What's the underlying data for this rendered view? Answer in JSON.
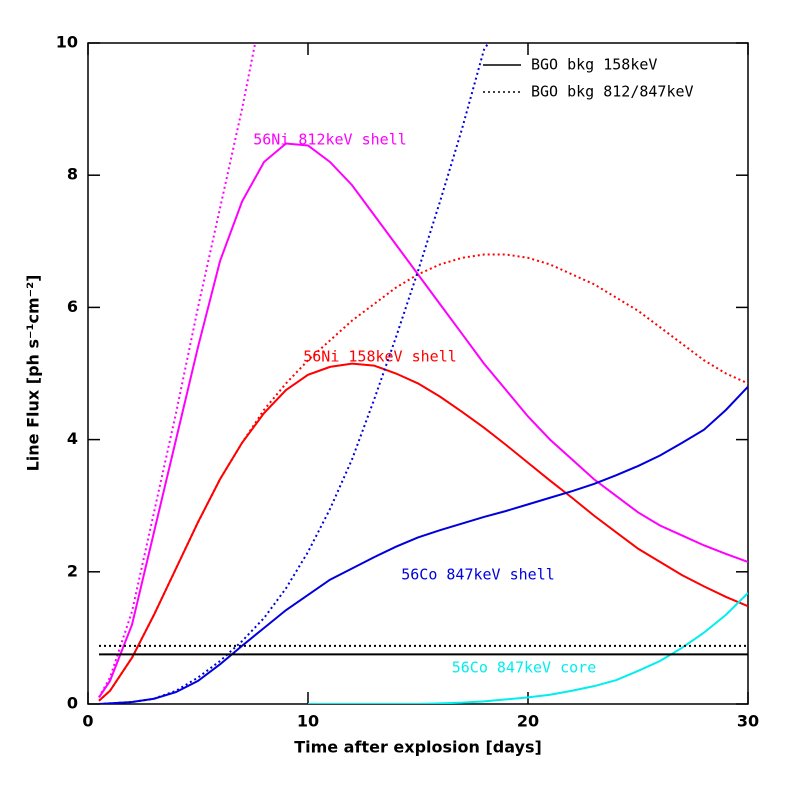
{
  "chart_data": {
    "type": "line",
    "xlabel": "Time after explosion [days]",
    "ylabel": "Line Flux [ph s⁻¹cm⁻²]",
    "xlim": [
      0,
      30
    ],
    "xticks": [
      0,
      10,
      20,
      30
    ],
    "ylim": [
      0,
      10
    ],
    "yticks": [
      0,
      2,
      4,
      6,
      8,
      10
    ],
    "legend": "upper right",
    "series": [
      {
        "label": "56Ni 812keV shell",
        "color": "#ff00ff",
        "style": "solid",
        "x": [
          0.5,
          1,
          2,
          3,
          4,
          5,
          6,
          7,
          8,
          9,
          10,
          11,
          12,
          13,
          14,
          15,
          16,
          17,
          18,
          19,
          20,
          21,
          22,
          23,
          24,
          25,
          26,
          27,
          28,
          29,
          30
        ],
        "values": [
          0.1,
          0.35,
          1.2,
          2.6,
          4.0,
          5.4,
          6.7,
          7.6,
          8.2,
          8.48,
          8.45,
          8.2,
          7.85,
          7.4,
          6.95,
          6.5,
          6.05,
          5.6,
          5.15,
          4.75,
          4.35,
          4.0,
          3.7,
          3.4,
          3.15,
          2.9,
          2.7,
          2.55,
          2.4,
          2.27,
          2.15
        ]
      },
      {
        "color": "#ff00ff",
        "style": "dotted",
        "x": [
          0.5,
          1,
          2,
          3,
          4,
          5,
          6,
          7,
          7.6
        ],
        "values": [
          0.1,
          0.4,
          1.4,
          2.9,
          4.4,
          6.0,
          7.5,
          9.0,
          10
        ]
      },
      {
        "label": "56Ni 158keV shell",
        "color": "#ff0000",
        "style": "solid",
        "x": [
          0.5,
          1,
          2,
          3,
          4,
          5,
          6,
          7,
          8,
          9,
          10,
          11,
          12,
          13,
          14,
          15,
          16,
          17,
          18,
          19,
          20,
          21,
          22,
          23,
          24,
          25,
          26,
          27,
          28,
          29,
          30
        ],
        "values": [
          0.05,
          0.2,
          0.7,
          1.35,
          2.05,
          2.75,
          3.4,
          3.95,
          4.4,
          4.75,
          4.98,
          5.1,
          5.15,
          5.12,
          5.0,
          4.85,
          4.65,
          4.42,
          4.18,
          3.92,
          3.65,
          3.38,
          3.12,
          2.85,
          2.6,
          2.35,
          2.15,
          1.95,
          1.78,
          1.62,
          1.48
        ]
      },
      {
        "color": "#ff0000",
        "style": "dotted",
        "x": [
          0.5,
          1,
          2,
          3,
          4,
          5,
          6,
          7,
          8,
          9,
          10,
          11,
          12,
          13,
          14,
          15,
          16,
          17,
          18,
          19,
          20,
          21,
          22,
          23,
          24,
          25,
          26,
          27,
          28,
          29,
          30
        ],
        "values": [
          0.05,
          0.2,
          0.7,
          1.35,
          2.05,
          2.75,
          3.4,
          3.95,
          4.45,
          4.85,
          5.2,
          5.5,
          5.8,
          6.05,
          6.3,
          6.5,
          6.65,
          6.75,
          6.8,
          6.8,
          6.75,
          6.65,
          6.5,
          6.35,
          6.15,
          5.95,
          5.7,
          5.45,
          5.2,
          5.0,
          4.85
        ]
      },
      {
        "label": "56Co 847keV shell",
        "color": "#0000dd",
        "style": "solid",
        "x": [
          0.5,
          1,
          2,
          3,
          4,
          5,
          6,
          7,
          8,
          9,
          10,
          11,
          12,
          13,
          14,
          15,
          16,
          17,
          18,
          19,
          20,
          21,
          22,
          23,
          24,
          25,
          26,
          27,
          28,
          29,
          30
        ],
        "values": [
          0,
          0.01,
          0.03,
          0.08,
          0.18,
          0.35,
          0.6,
          0.88,
          1.15,
          1.42,
          1.65,
          1.88,
          2.05,
          2.22,
          2.38,
          2.52,
          2.63,
          2.73,
          2.83,
          2.92,
          3.02,
          3.12,
          3.22,
          3.33,
          3.46,
          3.6,
          3.76,
          3.95,
          4.15,
          4.45,
          4.8
        ]
      },
      {
        "color": "#0000dd",
        "style": "dotted",
        "x": [
          0.5,
          1,
          2,
          3,
          4,
          5,
          6,
          7,
          8,
          9,
          10,
          11,
          12,
          13,
          14,
          15,
          16,
          17,
          18,
          18.2
        ],
        "values": [
          0,
          0.01,
          0.03,
          0.08,
          0.2,
          0.4,
          0.65,
          0.95,
          1.3,
          1.75,
          2.3,
          2.95,
          3.7,
          4.6,
          5.55,
          6.55,
          7.6,
          8.7,
          9.9,
          10
        ]
      },
      {
        "label": "56Co 847keV core",
        "color": "#00eeee",
        "style": "solid",
        "x": [
          10,
          15,
          16,
          17,
          18,
          19,
          20,
          21,
          22,
          23,
          24,
          25,
          26,
          27,
          28,
          29,
          30
        ],
        "values": [
          0,
          0,
          0.01,
          0.02,
          0.04,
          0.07,
          0.1,
          0.14,
          0.2,
          0.27,
          0.36,
          0.5,
          0.65,
          0.85,
          1.08,
          1.35,
          1.68
        ]
      },
      {
        "name": "BGO bkg 158keV",
        "color": "#000000",
        "style": "solid",
        "x": [
          0.5,
          30
        ],
        "values": [
          0.75,
          0.75
        ]
      },
      {
        "name": "BGO bkg 812/847keV",
        "color": "#000000",
        "style": "dotted",
        "x": [
          0.5,
          30
        ],
        "values": [
          0.88,
          0.88
        ]
      }
    ]
  }
}
